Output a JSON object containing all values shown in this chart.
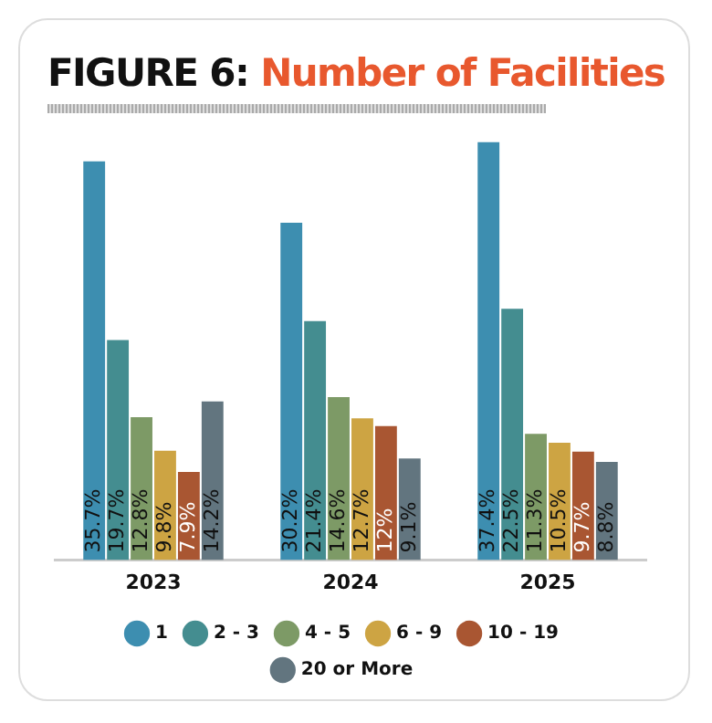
{
  "chart_data": {
    "type": "bar",
    "title": "FIGURE 6: Number of Facilities",
    "relative": false,
    "categories": [
      "2023",
      "2024",
      "2025"
    ],
    "series": [
      {
        "name": "1",
        "color": "#3d8eb0",
        "values": [
          35.7,
          30.2,
          37.4
        ],
        "value_labels": [
          "35.7%",
          "30.2%",
          "37.4%"
        ]
      },
      {
        "name": "2 - 3",
        "color": "#448d90",
        "values": [
          19.7,
          21.4,
          22.5
        ],
        "value_labels": [
          "19.7%",
          "21.4%",
          "22.5%"
        ]
      },
      {
        "name": "4 - 5",
        "color": "#7d9a66",
        "values": [
          12.8,
          14.6,
          11.3
        ],
        "value_labels": [
          "12.8%",
          "14.6%",
          "11.3%"
        ]
      },
      {
        "name": "6 - 9",
        "color": "#cda443",
        "values": [
          9.8,
          12.7,
          10.5
        ],
        "value_labels": [
          "9.8%",
          "12.7%",
          "10.5%"
        ]
      },
      {
        "name": "10 - 19",
        "color": "#a95632",
        "values": [
          7.9,
          12,
          9.7
        ],
        "value_labels": [
          "7.9%",
          "12%",
          "9.7%"
        ]
      },
      {
        "name": "20 or More",
        "color": "#62757f",
        "values": [
          14.2,
          9.1,
          8.8
        ],
        "value_labels": [
          "14.2%",
          "9.1%",
          "8.8%"
        ]
      }
    ],
    "legend": "bottom",
    "grid": false
  }
}
